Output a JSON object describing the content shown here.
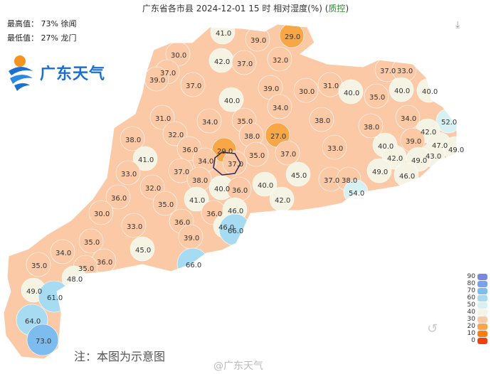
{
  "title": {
    "main": "广东省各市县 2024-12-01 15 时 相对湿度(%)",
    "qc_open": " (",
    "qc": "质控",
    "qc_close": ")"
  },
  "stats": {
    "max": "最高值： 73% 徐闻",
    "min": "最低值： 27% 龙门"
  },
  "logo_text": "广东天气",
  "note": "注：本图为示意图",
  "watermark": "@广东天气",
  "icons": {
    "download": "download-icon",
    "refresh": "undo-icon"
  },
  "legend": {
    "unit": "%",
    "items": [
      {
        "label": "90",
        "color": "#7b86e0"
      },
      {
        "label": "80",
        "color": "#79a2ee"
      },
      {
        "label": "70",
        "color": "#7cbcef"
      },
      {
        "label": "60",
        "color": "#a6dbf1"
      },
      {
        "label": "50",
        "color": "#d7f1f3"
      },
      {
        "label": "40",
        "color": "#f5f3e4"
      },
      {
        "label": "30",
        "color": "#fbc9a6"
      },
      {
        "label": "20",
        "color": "#f9a646"
      },
      {
        "label": "10",
        "color": "#fa7d14"
      },
      {
        "label": "0",
        "color": "#ef4010"
      }
    ]
  },
  "regions": [
    "41.0",
    "39.0",
    "29.0",
    "30.0",
    "42.0",
    "37.0",
    "32.0",
    "37.0",
    "33.0",
    "37.0",
    "39.0",
    "37.0",
    "39.0",
    "30.0",
    "31.0",
    "40.0",
    "35.0",
    "40.0",
    "40.0",
    "40.0",
    "34.0",
    "31.0",
    "34.0",
    "35.0",
    "38.0",
    "34.0",
    "52.0",
    "38.0",
    "27.0",
    "42.0",
    "38.0",
    "32.0",
    "38.0",
    "39.0",
    "47.0",
    "49.0",
    "36.0",
    "29.0",
    "35.0",
    "37.0",
    "33.0",
    "40.0",
    "43.0",
    "41.0",
    "34.0",
    "37.0",
    "42.0",
    "49.0",
    "33.0",
    "37.0",
    "38.0",
    "45.0",
    "49.0",
    "46.0",
    "32.0",
    "40.0",
    "36.0",
    "40.0",
    "37.0",
    "38.0",
    "54.0",
    "35.0",
    "41.0",
    "42.0",
    "36.0",
    "36.0",
    "46.0",
    "30.0",
    "36.0",
    "33.0",
    "46.0",
    "66.0",
    "35.0",
    "39.0",
    "45.0",
    "34.0",
    "36.0",
    "35.0",
    "66.0",
    "35.0",
    "48.0",
    "49.0",
    "61.0",
    "64.0",
    "73.0"
  ]
}
